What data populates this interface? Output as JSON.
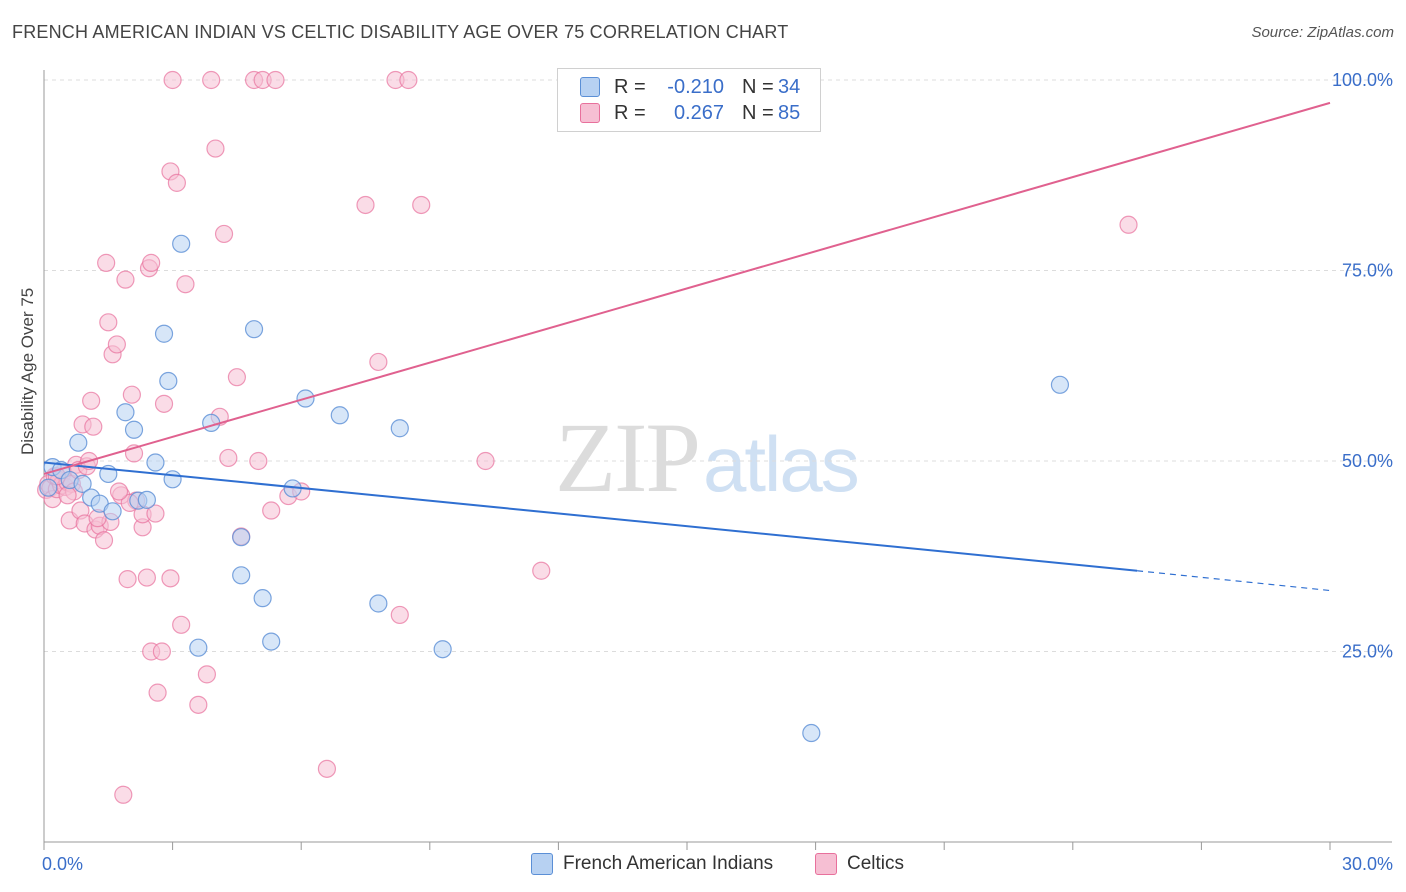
{
  "title": "FRENCH AMERICAN INDIAN VS CELTIC DISABILITY AGE OVER 75 CORRELATION CHART",
  "source": "Source: ZipAtlas.com",
  "watermark": {
    "zip": "ZIP",
    "atlas": "atlas"
  },
  "legend": {
    "rows": [
      {
        "r_label": "R =",
        "r_value": "-0.210",
        "n_label": "N =",
        "n_value": "34"
      },
      {
        "r_label": "R =",
        "r_value": "0.267",
        "n_label": "N =",
        "n_value": "85"
      }
    ]
  },
  "bottom_legend": {
    "series_a": "French American Indians",
    "series_b": "Celtics"
  },
  "chart_data": {
    "type": "scatter",
    "title": "FRENCH AMERICAN INDIAN VS CELTIC DISABILITY AGE OVER 75 CORRELATION CHART",
    "xlabel": "",
    "ylabel": "Disability Age Over 75",
    "xlim": [
      0,
      30
    ],
    "ylim": [
      0,
      100
    ],
    "x_tick_labels": [
      "0.0%",
      "30.0%"
    ],
    "y_tick_labels": [
      "25.0%",
      "50.0%",
      "75.0%",
      "100.0%"
    ],
    "y_ticks": [
      25,
      50,
      75,
      100
    ],
    "colors": {
      "blue": "#5b8fd6",
      "blue_fill": "#b7d1f2",
      "pink": "#e8709c",
      "pink_fill": "#f6bfd3",
      "blue_line": "#2f6fd1",
      "pink_line": "#e0618f"
    },
    "series": [
      {
        "name": "French American Indians",
        "r": -0.21,
        "n": 34,
        "trend": {
          "x0": 0,
          "y0": 49.8,
          "x1": 25.5,
          "y1": 35.6,
          "dash_to_x": 30,
          "dash_to_y": 33.0
        },
        "points": [
          [
            0.2,
            49.2
          ],
          [
            0.4,
            48.8
          ],
          [
            0.6,
            47.5
          ],
          [
            0.8,
            52.4
          ],
          [
            0.9,
            47.0
          ],
          [
            1.1,
            45.2
          ],
          [
            1.3,
            44.4
          ],
          [
            1.5,
            48.3
          ],
          [
            1.6,
            43.4
          ],
          [
            1.9,
            56.4
          ],
          [
            2.1,
            54.1
          ],
          [
            2.2,
            44.8
          ],
          [
            2.4,
            44.9
          ],
          [
            2.6,
            49.8
          ],
          [
            2.8,
            66.7
          ],
          [
            2.9,
            60.5
          ],
          [
            3.0,
            47.6
          ],
          [
            3.2,
            78.5
          ],
          [
            3.6,
            25.5
          ],
          [
            3.9,
            55.0
          ],
          [
            4.6,
            40.0
          ],
          [
            4.6,
            35.0
          ],
          [
            4.9,
            67.3
          ],
          [
            5.1,
            32.0
          ],
          [
            5.3,
            26.3
          ],
          [
            5.8,
            46.4
          ],
          [
            6.1,
            58.2
          ],
          [
            6.9,
            56.0
          ],
          [
            7.8,
            31.3
          ],
          [
            8.3,
            54.3
          ],
          [
            9.3,
            25.3
          ],
          [
            17.9,
            14.3
          ],
          [
            23.7,
            60.0
          ],
          [
            0.1,
            46.5
          ]
        ]
      },
      {
        "name": "Celtics",
        "r": 0.267,
        "n": 85,
        "trend": {
          "x0": 0,
          "y0": 48.3,
          "x1": 30,
          "y1": 97.0
        },
        "points": [
          [
            0.05,
            46.2
          ],
          [
            0.1,
            47.0
          ],
          [
            0.15,
            46.5
          ],
          [
            0.2,
            45.0
          ],
          [
            0.25,
            48.0
          ],
          [
            0.3,
            46.3
          ],
          [
            0.35,
            47.5
          ],
          [
            0.4,
            46.8
          ],
          [
            0.45,
            48.5
          ],
          [
            0.5,
            46.6
          ],
          [
            0.55,
            47.2
          ],
          [
            0.6,
            42.2
          ],
          [
            0.65,
            47.0
          ],
          [
            0.7,
            46.0
          ],
          [
            0.75,
            49.5
          ],
          [
            0.8,
            48.8
          ],
          [
            0.85,
            43.5
          ],
          [
            0.9,
            54.8
          ],
          [
            0.95,
            41.8
          ],
          [
            1.0,
            49.3
          ],
          [
            1.05,
            50.0
          ],
          [
            1.1,
            57.9
          ],
          [
            1.15,
            54.5
          ],
          [
            1.2,
            41.0
          ],
          [
            1.3,
            41.5
          ],
          [
            1.4,
            39.6
          ],
          [
            1.45,
            76.0
          ],
          [
            1.5,
            68.2
          ],
          [
            1.55,
            42.0
          ],
          [
            1.6,
            64.0
          ],
          [
            1.7,
            65.3
          ],
          [
            1.8,
            45.5
          ],
          [
            1.85,
            6.2
          ],
          [
            1.9,
            73.8
          ],
          [
            1.95,
            34.5
          ],
          [
            2.05,
            58.7
          ],
          [
            2.1,
            51.0
          ],
          [
            2.15,
            44.8
          ],
          [
            2.3,
            41.3
          ],
          [
            2.3,
            43.0
          ],
          [
            2.4,
            34.7
          ],
          [
            2.45,
            75.3
          ],
          [
            2.5,
            76.0
          ],
          [
            2.5,
            25.0
          ],
          [
            2.6,
            43.1
          ],
          [
            2.65,
            19.6
          ],
          [
            2.75,
            25.0
          ],
          [
            2.8,
            57.5
          ],
          [
            2.95,
            34.6
          ],
          [
            2.95,
            88.0
          ],
          [
            3.0,
            100.0
          ],
          [
            3.1,
            86.5
          ],
          [
            3.2,
            28.5
          ],
          [
            3.3,
            73.2
          ],
          [
            3.6,
            18.0
          ],
          [
            3.8,
            22.0
          ],
          [
            3.9,
            100.0
          ],
          [
            4.0,
            91.0
          ],
          [
            4.1,
            55.8
          ],
          [
            4.2,
            79.8
          ],
          [
            4.3,
            50.4
          ],
          [
            4.5,
            61.0
          ],
          [
            4.6,
            40.1
          ],
          [
            4.9,
            100.0
          ],
          [
            5.0,
            50.0
          ],
          [
            5.1,
            100.0
          ],
          [
            5.3,
            43.5
          ],
          [
            5.4,
            100.0
          ],
          [
            5.7,
            45.4
          ],
          [
            6.0,
            46.0
          ],
          [
            6.6,
            9.6
          ],
          [
            7.5,
            83.6
          ],
          [
            7.8,
            63.0
          ],
          [
            8.2,
            100.0
          ],
          [
            8.3,
            29.8
          ],
          [
            8.5,
            100.0
          ],
          [
            8.8,
            83.6
          ],
          [
            10.3,
            50.0
          ],
          [
            11.6,
            35.6
          ],
          [
            25.3,
            81.0
          ],
          [
            1.25,
            42.5
          ],
          [
            0.55,
            45.5
          ],
          [
            2.0,
            44.5
          ],
          [
            1.75,
            46.0
          ],
          [
            0.3,
            48.0
          ]
        ]
      }
    ]
  }
}
